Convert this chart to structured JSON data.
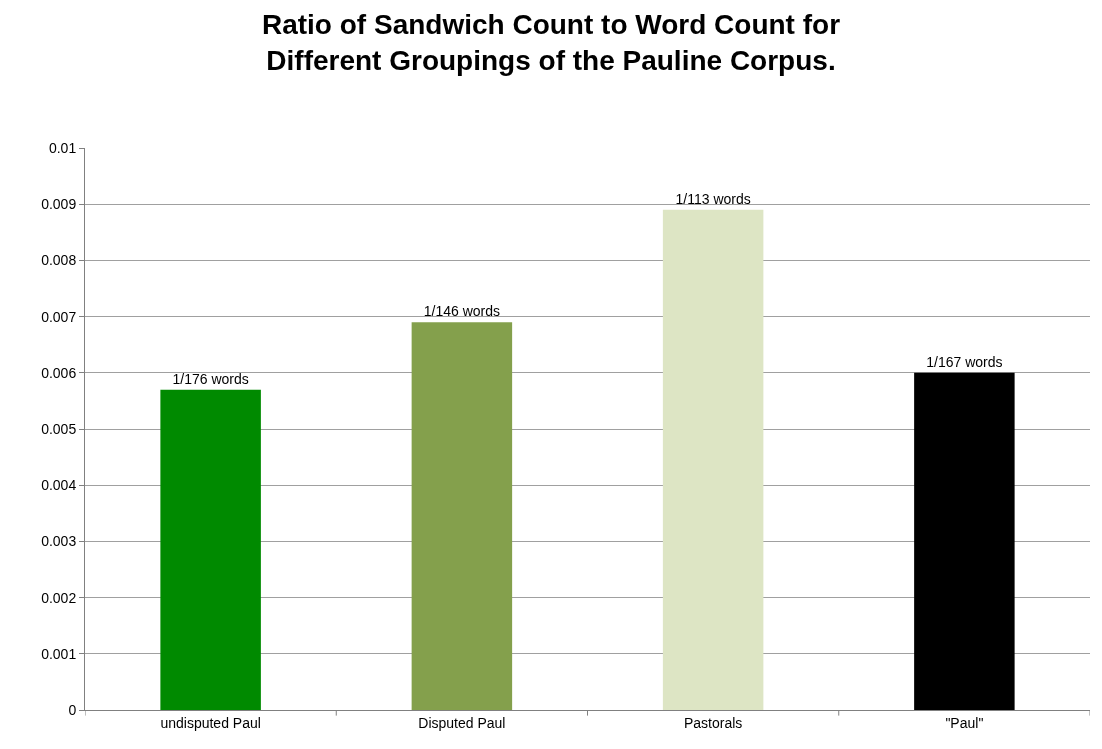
{
  "chart_data": {
    "type": "bar",
    "title": "Ratio of Sandwich Count to Word Count for\nDifferent Groupings of the Pauline Corpus.",
    "categories": [
      "undisputed Paul",
      "Disputed Paul",
      "Pastorals",
      "\"Paul\""
    ],
    "values": [
      0.0057,
      0.0069,
      0.0089,
      0.006
    ],
    "colors": [
      "#008a00",
      "#84a04c",
      "#dde5c4",
      "#000000"
    ],
    "value_labels": [
      "1/176 words",
      "1/146 words",
      "1/113 words",
      "1/167 words"
    ],
    "ylim": [
      0,
      0.01
    ],
    "yticks": [
      0,
      0.001,
      0.002,
      0.003,
      0.004,
      0.005,
      0.006,
      0.007,
      0.008,
      0.009,
      0.01
    ],
    "grid": "y"
  }
}
